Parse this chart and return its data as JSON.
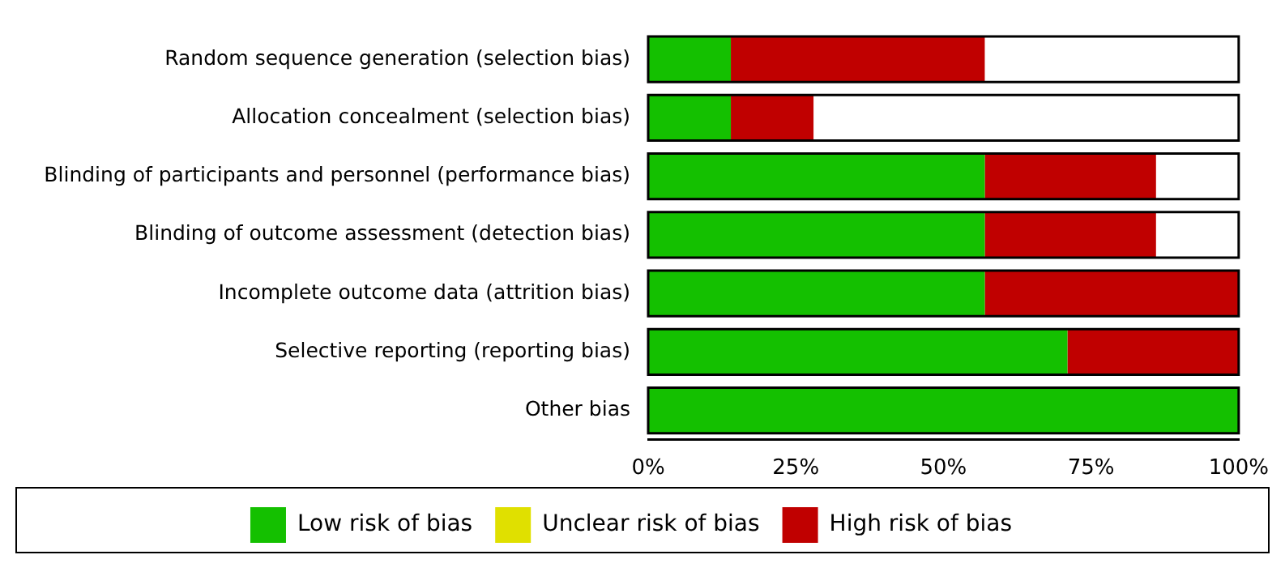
{
  "chart_data": {
    "type": "bar",
    "orientation": "horizontal",
    "stacked": true,
    "categories": [
      "Random sequence generation (selection bias)",
      "Allocation concealment (selection bias)",
      "Blinding of participants and personnel (performance bias)",
      "Blinding of outcome assessment (detection bias)",
      "Incomplete outcome data (attrition bias)",
      "Selective reporting (reporting bias)",
      "Other bias"
    ],
    "series": [
      {
        "name": "Low risk of bias",
        "color": "#14c000",
        "values": [
          14,
          14,
          57,
          57,
          57,
          71,
          100
        ]
      },
      {
        "name": "Unclear risk of bias",
        "color": "#e0e000",
        "values": [
          0,
          0,
          0,
          0,
          0,
          0,
          0
        ]
      },
      {
        "name": "High risk of bias",
        "color": "#c00000",
        "values": [
          43,
          14,
          29,
          29,
          43,
          29,
          0
        ]
      }
    ],
    "xlim": [
      0,
      100
    ],
    "xticks": [
      {
        "value": 0,
        "label": "0%"
      },
      {
        "value": 25,
        "label": "25%"
      },
      {
        "value": 50,
        "label": "50%"
      },
      {
        "value": 75,
        "label": "75%"
      },
      {
        "value": 100,
        "label": "100%"
      }
    ],
    "grid": false,
    "legend": "bottom"
  }
}
